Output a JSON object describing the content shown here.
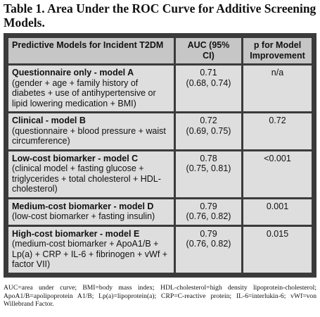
{
  "title": "Table 1. Area Under the ROC Curve for Additive Screening Models.",
  "table": {
    "header": [
      "Predictive Models for Incident T2DM",
      "AUC (95% CI)",
      "p for Model Improvement"
    ],
    "rows": [
      {
        "model": "Questionnaire only - model A",
        "description": "(gender + age + family history of diabetes + use of antihypertensive or lipid lowering medication + BMI)",
        "auc": "0.71",
        "ci": "(0.68, 0.74)",
        "p": "n/a"
      },
      {
        "model": "Clinical - model B",
        "description": "(questionnaire + blood pressure + waist circumference)",
        "auc": "0.72",
        "ci": "(0.69, 0.75)",
        "p": "0.72"
      },
      {
        "model": "Low-cost biomarker - model C",
        "description": "(clinical model + fasting glucose + triglycerides + total cholesterol + HDL-cholesterol)",
        "auc": "0.78",
        "ci": "(0.75, 0.81)",
        "p": "<0.001"
      },
      {
        "model": "Medium-cost biomarker - model D",
        "description": "(low-cost biomarker + fasting insulin)",
        "auc": "0.79",
        "ci": "(0.76, 0.82)",
        "p": "0.001"
      },
      {
        "model": "High-cost biomarker - model E",
        "description": "(medium-cost biomarker + ApoA1/B + Lp(a) + CRP + IL-6 + fibrinogen + vWf + factor VII)",
        "auc": "0.79",
        "ci": "(0.76, 0.82)",
        "p": "0.015"
      }
    ]
  },
  "footnote": "AUC=area under curve; BMI=body mass index; HDL-cholesterol=high density lipoprotein-cholesterol; ApoA1/B=apolipoprotein A1/B; Lp(a)=lipoprotein(a); CRP=C-reactive protein; IL-6=interlukin-6; vWf=von Willebrand Factor."
}
